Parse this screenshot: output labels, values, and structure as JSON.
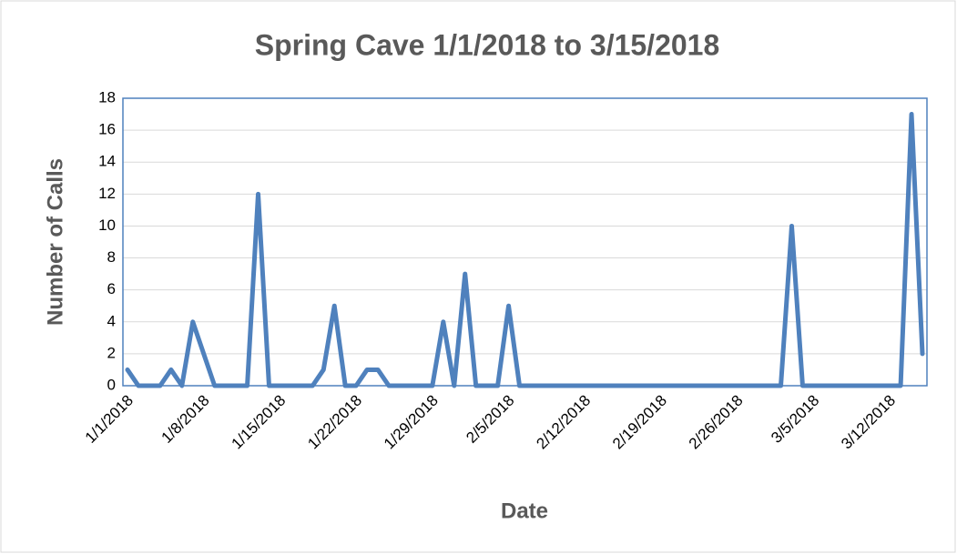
{
  "chart_data": {
    "type": "line",
    "title": "Spring Cave 1/1/2018 to 3/15/2018",
    "x_label": "Date",
    "y_label": "Number of Calls",
    "categories": [
      "1/1/2018",
      null,
      null,
      null,
      null,
      null,
      null,
      "1/8/2018",
      null,
      null,
      null,
      null,
      null,
      null,
      "1/15/2018",
      null,
      null,
      null,
      null,
      null,
      null,
      "1/22/2018",
      null,
      null,
      null,
      null,
      null,
      null,
      "1/29/2018",
      null,
      null,
      null,
      null,
      null,
      null,
      "2/5/2018",
      null,
      null,
      null,
      null,
      null,
      null,
      "2/12/2018",
      null,
      null,
      null,
      null,
      null,
      null,
      "2/19/2018",
      null,
      null,
      null,
      null,
      null,
      null,
      "2/26/2018",
      null,
      null,
      null,
      null,
      null,
      null,
      "3/5/2018",
      null,
      null,
      null,
      null,
      null,
      null,
      "3/12/2018",
      null,
      null,
      null
    ],
    "values": [
      1,
      0,
      0,
      0,
      1,
      0,
      4,
      2,
      0,
      0,
      0,
      0,
      12,
      0,
      0,
      0,
      0,
      0,
      1,
      5,
      0,
      0,
      1,
      1,
      0,
      0,
      0,
      0,
      0,
      4,
      0,
      7,
      0,
      0,
      0,
      5,
      0,
      0,
      0,
      0,
      0,
      0,
      0,
      0,
      0,
      0,
      0,
      0,
      0,
      0,
      0,
      0,
      0,
      0,
      0,
      0,
      0,
      0,
      0,
      0,
      0,
      10,
      0,
      0,
      0,
      0,
      0,
      0,
      0,
      0,
      0,
      0,
      17,
      2
    ],
    "color": "#4f81bd",
    "ylim": [
      0,
      18
    ],
    "yticks": [
      0,
      2,
      4,
      6,
      8,
      10,
      12,
      14,
      16,
      18
    ],
    "grid": true
  }
}
